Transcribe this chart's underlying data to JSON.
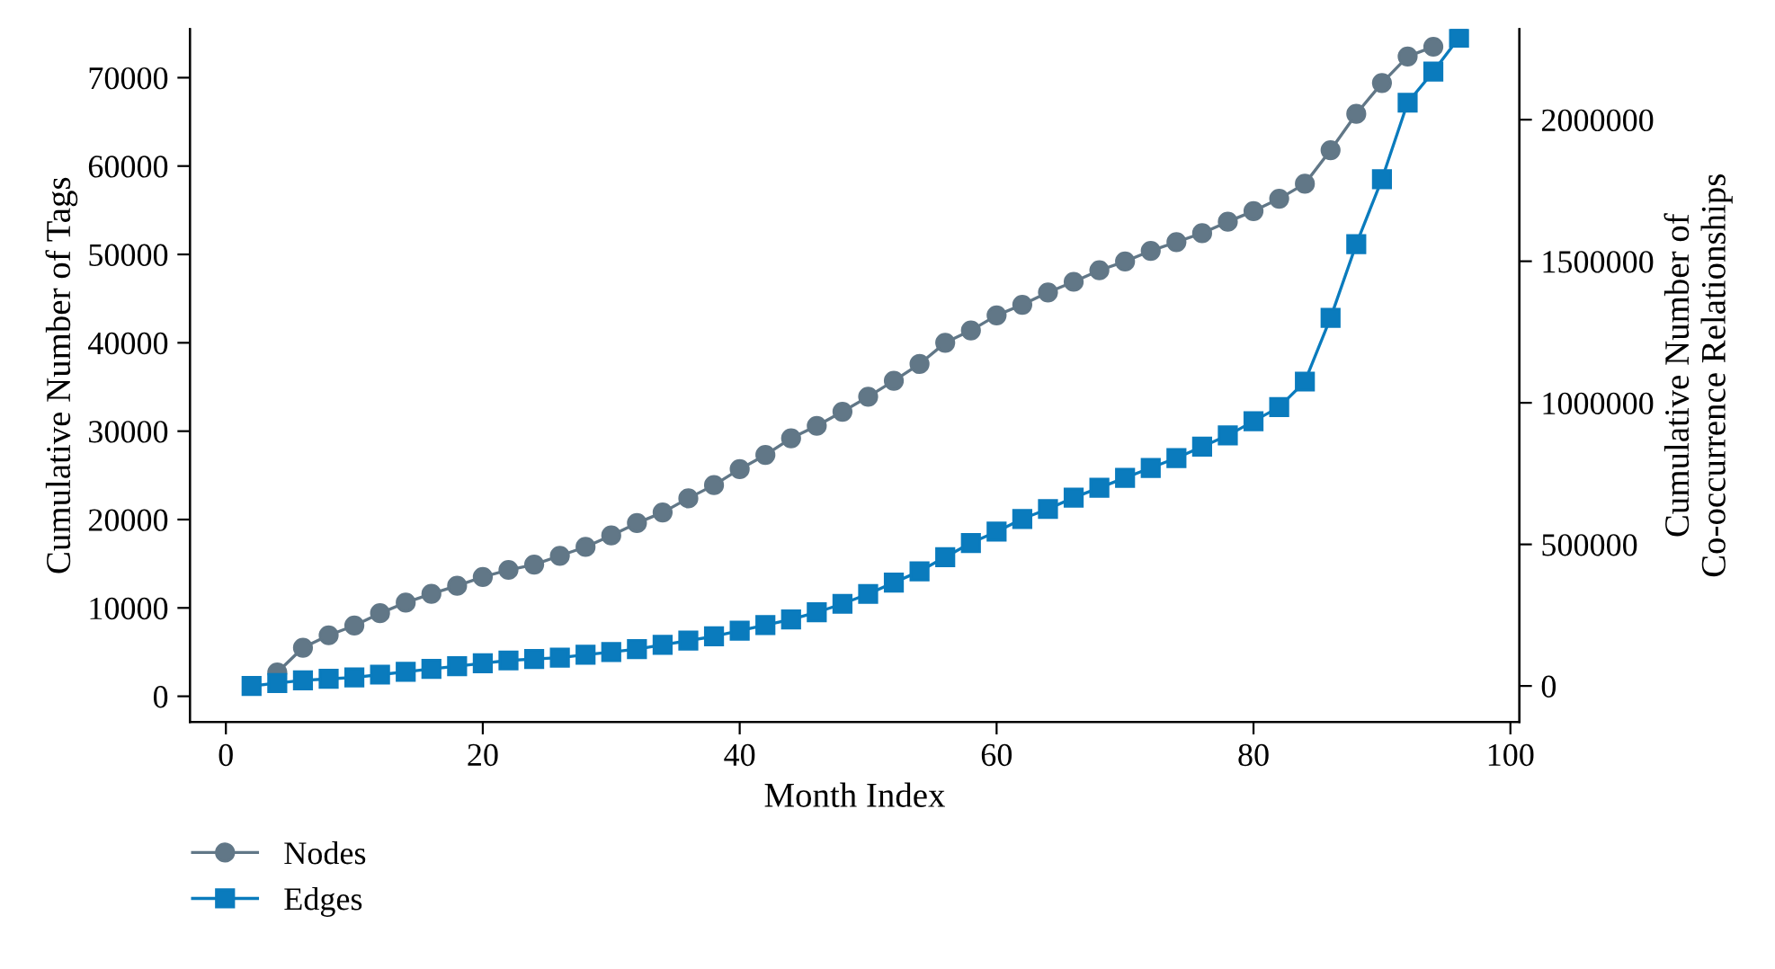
{
  "chart_data": {
    "type": "line",
    "xlabel": "Month Index",
    "ylabel": "Cumulative Number of Tags",
    "y2label": "Cumulative Number of\nCo-occurrence Relationships",
    "x": [
      2,
      4,
      6,
      8,
      10,
      12,
      14,
      16,
      18,
      20,
      22,
      24,
      26,
      28,
      30,
      32,
      34,
      36,
      38,
      40,
      42,
      44,
      46,
      48,
      50,
      52,
      54,
      56,
      58,
      60,
      62,
      64,
      66,
      68,
      70,
      72,
      74,
      76,
      78,
      80,
      82,
      84,
      86,
      88,
      90,
      92,
      94,
      96
    ],
    "series": [
      {
        "name": "Nodes",
        "color": "#617787",
        "marker": "circle",
        "values": [
          null,
          2700,
          5500,
          6900,
          8000,
          9400,
          10600,
          11600,
          12500,
          13500,
          14300,
          14900,
          15900,
          16900,
          18200,
          19600,
          20800,
          22400,
          23900,
          25700,
          27300,
          29200,
          30600,
          32200,
          33900,
          35700,
          37600,
          40000,
          41400,
          43100,
          44300,
          45700,
          46900,
          48200,
          49200,
          50400,
          51400,
          52400,
          53700,
          54900,
          56300,
          58000,
          61800,
          65900,
          69400,
          72400,
          73500,
          null
        ]
      },
      {
        "name": "Edges",
        "color": "#0a7bbd",
        "marker": "square",
        "axis": "y2",
        "values": [
          0,
          10000,
          20000,
          25000,
          30000,
          40000,
          50000,
          60000,
          70000,
          80000,
          90000,
          95000,
          100000,
          110000,
          120000,
          130000,
          145000,
          160000,
          175000,
          195000,
          215000,
          235000,
          260000,
          290000,
          325000,
          365000,
          405000,
          455000,
          505000,
          545000,
          590000,
          625000,
          665000,
          700000,
          735000,
          770000,
          805000,
          845000,
          885000,
          935000,
          985000,
          1075000,
          1300000,
          1560000,
          1790000,
          2060000,
          2170000,
          2290000
        ]
      }
    ],
    "xlim": [
      -2.8,
      100.7
    ],
    "xticks": [
      0,
      20,
      40,
      60,
      80,
      100
    ],
    "ylim": [
      -2900,
      75500
    ],
    "yticks": [
      0,
      10000,
      20000,
      30000,
      40000,
      50000,
      60000,
      70000
    ],
    "y2lim": [
      -127000,
      2320000
    ],
    "y2ticks": [
      0,
      500000,
      1000000,
      1500000,
      2000000
    ],
    "legend": "bottom left",
    "grid": false,
    "line_style": "solid"
  }
}
